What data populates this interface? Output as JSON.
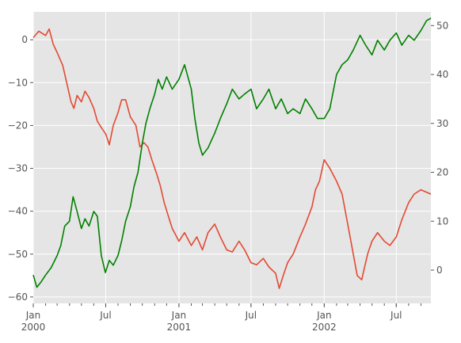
{
  "chart_data": {
    "type": "line",
    "title": "",
    "xlabel": "",
    "ylabel": "",
    "style": "ggplot",
    "grid": true,
    "legend": "none",
    "background_color": "#e5e5e5",
    "grid_color": "#ffffff",
    "x_range": [
      "2000-01-01",
      "2002-09-26"
    ],
    "x_tick_labels": [
      {
        "date": "2000-01-01",
        "label": "Jan",
        "year": "2000"
      },
      {
        "date": "2000-07-01",
        "label": "Jul",
        "year": ""
      },
      {
        "date": "2001-01-01",
        "label": "Jan",
        "year": "2001"
      },
      {
        "date": "2001-07-01",
        "label": "Jul",
        "year": ""
      },
      {
        "date": "2002-01-01",
        "label": "Jan",
        "year": "2002"
      },
      {
        "date": "2002-07-01",
        "label": "Jul",
        "year": ""
      }
    ],
    "y_left": {
      "range": [
        -61.5,
        6.5
      ],
      "ticks": [
        0,
        -10,
        -20,
        -30,
        -40,
        -50,
        -60
      ],
      "tick_labels": [
        "0",
        "−10",
        "−20",
        "−30",
        "−40",
        "−50",
        "−60"
      ]
    },
    "y_right": {
      "range": [
        -6.8,
        52.8
      ],
      "ticks": [
        0,
        10,
        20,
        30,
        40,
        50
      ],
      "tick_labels": [
        "0",
        "10",
        "20",
        "30",
        "40",
        "50"
      ]
    },
    "series": [
      {
        "axis": "left",
        "color": "#e24a33",
        "points": [
          [
            "2000-01-01",
            0.5
          ],
          [
            "2000-01-15",
            2.0
          ],
          [
            "2000-02-01",
            1.0
          ],
          [
            "2000-02-10",
            2.5
          ],
          [
            "2000-02-20",
            -1.0
          ],
          [
            "2000-03-01",
            -3.0
          ],
          [
            "2000-03-15",
            -6.0
          ],
          [
            "2000-03-25",
            -10.0
          ],
          [
            "2000-04-05",
            -14.5
          ],
          [
            "2000-04-12",
            -16.0
          ],
          [
            "2000-04-20",
            -13.0
          ],
          [
            "2000-05-01",
            -14.5
          ],
          [
            "2000-05-10",
            -12.0
          ],
          [
            "2000-05-20",
            -13.5
          ],
          [
            "2000-06-01",
            -16.0
          ],
          [
            "2000-06-10",
            -19.0
          ],
          [
            "2000-06-20",
            -20.5
          ],
          [
            "2000-07-01",
            -22.0
          ],
          [
            "2000-07-10",
            -24.5
          ],
          [
            "2000-07-20",
            -20.0
          ],
          [
            "2000-08-01",
            -17.0
          ],
          [
            "2000-08-10",
            -14.0
          ],
          [
            "2000-08-20",
            -14.0
          ],
          [
            "2000-09-01",
            -18.0
          ],
          [
            "2000-09-15",
            -20.0
          ],
          [
            "2000-09-25",
            -25.0
          ],
          [
            "2000-10-05",
            -24.0
          ],
          [
            "2000-10-15",
            -25.0
          ],
          [
            "2000-10-25",
            -28.0
          ],
          [
            "2000-11-05",
            -31.0
          ],
          [
            "2000-11-15",
            -34.0
          ],
          [
            "2000-11-25",
            -38.0
          ],
          [
            "2000-12-05",
            -41.0
          ],
          [
            "2000-12-15",
            -44.0
          ],
          [
            "2001-01-01",
            -47.0
          ],
          [
            "2001-01-15",
            -45.0
          ],
          [
            "2001-02-01",
            -48.0
          ],
          [
            "2001-02-15",
            -46.0
          ],
          [
            "2001-03-01",
            -49.0
          ],
          [
            "2001-03-15",
            -45.0
          ],
          [
            "2001-04-01",
            -43.0
          ],
          [
            "2001-04-15",
            -46.0
          ],
          [
            "2001-05-01",
            -49.0
          ],
          [
            "2001-05-15",
            -49.5
          ],
          [
            "2001-06-01",
            -47.0
          ],
          [
            "2001-06-15",
            -49.0
          ],
          [
            "2001-07-01",
            -52.0
          ],
          [
            "2001-07-15",
            -52.5
          ],
          [
            "2001-08-01",
            -51.0
          ],
          [
            "2001-08-15",
            -53.0
          ],
          [
            "2001-09-01",
            -54.5
          ],
          [
            "2001-09-10",
            -58.0
          ],
          [
            "2001-09-20",
            -55.0
          ],
          [
            "2001-10-01",
            -52.0
          ],
          [
            "2001-10-15",
            -50.0
          ],
          [
            "2001-11-01",
            -46.0
          ],
          [
            "2001-11-15",
            -43.0
          ],
          [
            "2001-12-01",
            -39.0
          ],
          [
            "2001-12-10",
            -35.0
          ],
          [
            "2001-12-20",
            -33.0
          ],
          [
            "2002-01-01",
            -28.0
          ],
          [
            "2002-01-15",
            -30.0
          ],
          [
            "2002-02-01",
            -33.0
          ],
          [
            "2002-02-15",
            -36.0
          ],
          [
            "2002-03-01",
            -43.0
          ],
          [
            "2002-03-15",
            -50.0
          ],
          [
            "2002-03-25",
            -55.0
          ],
          [
            "2002-04-05",
            -56.0
          ],
          [
            "2002-04-20",
            -50.0
          ],
          [
            "2002-05-01",
            -47.0
          ],
          [
            "2002-05-15",
            -45.0
          ],
          [
            "2002-06-01",
            -47.0
          ],
          [
            "2002-06-15",
            -48.0
          ],
          [
            "2002-07-01",
            -46.0
          ],
          [
            "2002-07-15",
            -42.0
          ],
          [
            "2002-08-01",
            -38.0
          ],
          [
            "2002-08-15",
            -36.0
          ],
          [
            "2002-09-01",
            -35.0
          ],
          [
            "2002-09-26",
            -36.0
          ]
        ]
      },
      {
        "axis": "right",
        "color": "#008000",
        "points": [
          [
            "2000-01-01",
            -1.0
          ],
          [
            "2000-01-10",
            -3.5
          ],
          [
            "2000-01-20",
            -2.5
          ],
          [
            "2000-02-01",
            -1.0
          ],
          [
            "2000-02-15",
            0.5
          ],
          [
            "2000-03-01",
            3.0
          ],
          [
            "2000-03-10",
            5.0
          ],
          [
            "2000-03-20",
            9.0
          ],
          [
            "2000-04-01",
            10.0
          ],
          [
            "2000-04-10",
            15.0
          ],
          [
            "2000-04-20",
            12.0
          ],
          [
            "2000-05-01",
            8.5
          ],
          [
            "2000-05-10",
            10.5
          ],
          [
            "2000-05-20",
            9.0
          ],
          [
            "2000-06-01",
            12.0
          ],
          [
            "2000-06-10",
            11.0
          ],
          [
            "2000-06-20",
            3.0
          ],
          [
            "2000-06-30",
            -0.5
          ],
          [
            "2000-07-10",
            2.0
          ],
          [
            "2000-07-20",
            1.0
          ],
          [
            "2000-08-01",
            3.0
          ],
          [
            "2000-08-10",
            6.0
          ],
          [
            "2000-08-20",
            10.0
          ],
          [
            "2000-09-01",
            13.0
          ],
          [
            "2000-09-10",
            17.0
          ],
          [
            "2000-09-20",
            20.0
          ],
          [
            "2000-10-01",
            26.0
          ],
          [
            "2000-10-10",
            30.0
          ],
          [
            "2000-10-20",
            33.0
          ],
          [
            "2000-11-01",
            36.0
          ],
          [
            "2000-11-10",
            39.0
          ],
          [
            "2000-11-20",
            37.0
          ],
          [
            "2000-12-01",
            39.5
          ],
          [
            "2000-12-15",
            37.0
          ],
          [
            "2001-01-01",
            39.0
          ],
          [
            "2001-01-15",
            42.0
          ],
          [
            "2001-02-01",
            37.0
          ],
          [
            "2001-02-10",
            31.0
          ],
          [
            "2001-02-20",
            26.0
          ],
          [
            "2001-03-01",
            23.5
          ],
          [
            "2001-03-15",
            25.0
          ],
          [
            "2001-04-01",
            28.0
          ],
          [
            "2001-04-15",
            31.0
          ],
          [
            "2001-05-01",
            34.0
          ],
          [
            "2001-05-15",
            37.0
          ],
          [
            "2001-06-01",
            35.0
          ],
          [
            "2001-06-15",
            36.0
          ],
          [
            "2001-07-01",
            37.0
          ],
          [
            "2001-07-15",
            33.0
          ],
          [
            "2001-08-01",
            35.0
          ],
          [
            "2001-08-15",
            37.0
          ],
          [
            "2001-09-01",
            33.0
          ],
          [
            "2001-09-15",
            35.0
          ],
          [
            "2001-10-01",
            32.0
          ],
          [
            "2001-10-15",
            33.0
          ],
          [
            "2001-11-01",
            32.0
          ],
          [
            "2001-11-15",
            35.0
          ],
          [
            "2001-12-01",
            33.0
          ],
          [
            "2001-12-15",
            31.0
          ],
          [
            "2002-01-01",
            31.0
          ],
          [
            "2002-01-15",
            33.0
          ],
          [
            "2002-02-01",
            40.0
          ],
          [
            "2002-02-15",
            42.0
          ],
          [
            "2002-03-01",
            43.0
          ],
          [
            "2002-03-15",
            45.0
          ],
          [
            "2002-04-01",
            48.0
          ],
          [
            "2002-04-15",
            46.0
          ],
          [
            "2002-05-01",
            44.0
          ],
          [
            "2002-05-15",
            47.0
          ],
          [
            "2002-06-01",
            45.0
          ],
          [
            "2002-06-15",
            47.0
          ],
          [
            "2002-07-01",
            48.5
          ],
          [
            "2002-07-15",
            46.0
          ],
          [
            "2002-08-01",
            48.0
          ],
          [
            "2002-08-15",
            47.0
          ],
          [
            "2002-09-01",
            49.0
          ],
          [
            "2002-09-15",
            51.0
          ],
          [
            "2002-09-26",
            51.5
          ]
        ]
      }
    ]
  }
}
